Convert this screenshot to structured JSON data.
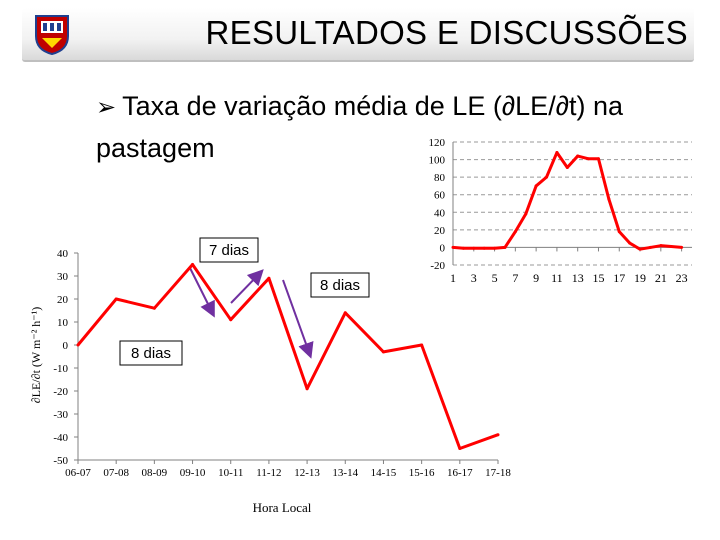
{
  "slide": {
    "title": "RESULTADOS E DISCUSSÕES",
    "bullet_text_line1": "Taxa de variação média de LE (∂LE/∂t) na",
    "bullet_text_line2": "pastagem",
    "bullet_icon": "arrow-bullet-icon",
    "logo_icon": "university-crest-icon"
  },
  "colors": {
    "series": "#ff0000",
    "arrow": "#7030a0",
    "grid": "#999999",
    "axis": "#808080"
  },
  "chart_data": [
    {
      "type": "line",
      "title": "",
      "xlabel": "Hora Local",
      "ylabel": "∂LE/∂t (W m⁻² h⁻¹)",
      "categories": [
        "06-07",
        "07-08",
        "08-09",
        "09-10",
        "10-11",
        "11-12",
        "12-13",
        "13-14",
        "14-15",
        "15-16",
        "16-17",
        "17-18"
      ],
      "values": [
        0,
        20,
        16,
        35,
        11,
        29,
        -19,
        14,
        -3,
        0,
        -45,
        -39
      ],
      "ylim": [
        -50,
        40
      ],
      "yticks": [
        -50,
        -40,
        -30,
        -20,
        -10,
        0,
        10,
        20,
        30,
        40
      ],
      "grid": false,
      "annotations": [
        {
          "text": "7 dias"
        },
        {
          "text": "8 dias"
        },
        {
          "text": "8 dias"
        }
      ]
    },
    {
      "type": "line",
      "title": "",
      "x": [
        1,
        2,
        3,
        4,
        5,
        6,
        7,
        8,
        9,
        10,
        11,
        12,
        13,
        14,
        15,
        16,
        17,
        18,
        19,
        20,
        21,
        22,
        23,
        24
      ],
      "values": [
        0,
        -1,
        -1,
        -1,
        -1,
        0,
        18,
        38,
        70,
        80,
        108,
        91,
        104,
        101,
        101,
        55,
        18,
        5,
        -2,
        0,
        2,
        1,
        0,
        null
      ],
      "xticks": [
        1,
        3,
        5,
        7,
        9,
        11,
        13,
        15,
        17,
        19,
        21,
        23
      ],
      "ylim": [
        -20,
        120
      ],
      "yticks": [
        -20,
        0,
        20,
        40,
        60,
        80,
        100,
        120
      ],
      "grid": true
    }
  ]
}
